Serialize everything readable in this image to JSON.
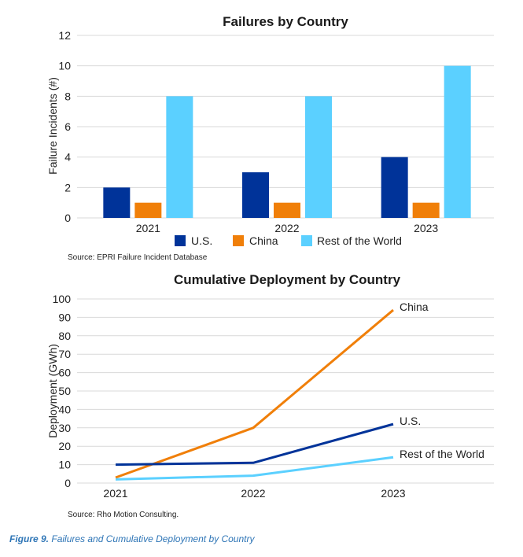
{
  "chart_data": [
    {
      "type": "bar",
      "title": "Failures by Country",
      "ylabel": "Failure Incidents (#)",
      "xlabel": "",
      "ylim": [
        0,
        12
      ],
      "yticks": [
        "0",
        "2",
        "4",
        "6",
        "8",
        "10",
        "12"
      ],
      "categories": [
        "2021",
        "2022",
        "2023"
      ],
      "series": [
        {
          "name": "U.S.",
          "color": "#003399",
          "values": [
            2,
            3,
            4
          ]
        },
        {
          "name": "China",
          "color": "#f07f09",
          "values": [
            1,
            1,
            1
          ]
        },
        {
          "name": "Rest of the World",
          "color": "#5bd0ff",
          "values": [
            8,
            8,
            10
          ]
        }
      ],
      "legend_position": "bottom",
      "grid": true,
      "source": "Source: EPRI Failure Incident Database"
    },
    {
      "type": "line",
      "title": "Cumulative Deployment by Country",
      "ylabel": "Deployment (GWh)",
      "xlabel": "",
      "ylim": [
        0,
        100
      ],
      "yticks": [
        "0",
        "10",
        "20",
        "30",
        "40",
        "50",
        "60",
        "70",
        "80",
        "90",
        "100"
      ],
      "x": [
        "2021",
        "2022",
        "2023"
      ],
      "series": [
        {
          "name": "China",
          "color": "#f07f09",
          "values": [
            3,
            30,
            94
          ]
        },
        {
          "name": "U.S.",
          "color": "#003399",
          "values": [
            10,
            11,
            32
          ]
        },
        {
          "name": "Rest of the World",
          "color": "#5bd0ff",
          "values": [
            2,
            4,
            14
          ]
        }
      ],
      "legend_position": "line-end labels",
      "grid": true,
      "source": "Source: Rho Motion Consulting."
    }
  ],
  "caption": {
    "label": "Figure 9.",
    "text": "Failures and Cumulative Deployment by Country"
  }
}
